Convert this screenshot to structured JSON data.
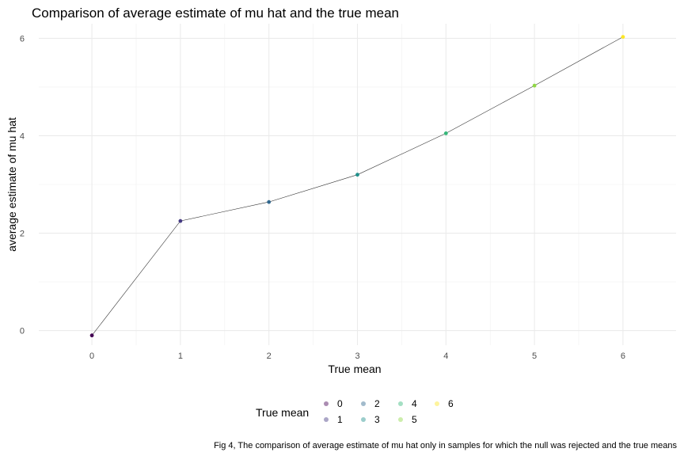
{
  "title": "Comparison of average estimate of mu hat and the true mean",
  "caption": "Fig 4, The comparison of average estimate of mu hat only in samples for which the null was rejected and the true means",
  "chart_data": {
    "type": "line",
    "title": "Comparison of average estimate of mu hat and the true mean",
    "xlabel": "True mean",
    "ylabel": "average estimate of mu hat",
    "xlim": [
      -0.6,
      6.6
    ],
    "ylim": [
      -0.3,
      6.3
    ],
    "x_ticks": [
      0,
      1,
      2,
      3,
      4,
      5,
      6
    ],
    "y_ticks": [
      0,
      2,
      4,
      6
    ],
    "grid": true,
    "legend_position": "bottom",
    "series": [
      {
        "x": [
          0,
          1,
          2,
          3,
          4,
          5,
          6
        ],
        "y": [
          -0.1,
          2.25,
          2.64,
          3.2,
          4.05,
          5.03,
          6.03
        ],
        "line_color": "#333333"
      }
    ],
    "legend": {
      "title": "True mean",
      "entries": [
        "0",
        "1",
        "2",
        "3",
        "4",
        "5",
        "6"
      ],
      "colors": [
        "#440154",
        "#443A83",
        "#31688E",
        "#21908C",
        "#35B779",
        "#8FD744",
        "#FDE725"
      ]
    }
  }
}
